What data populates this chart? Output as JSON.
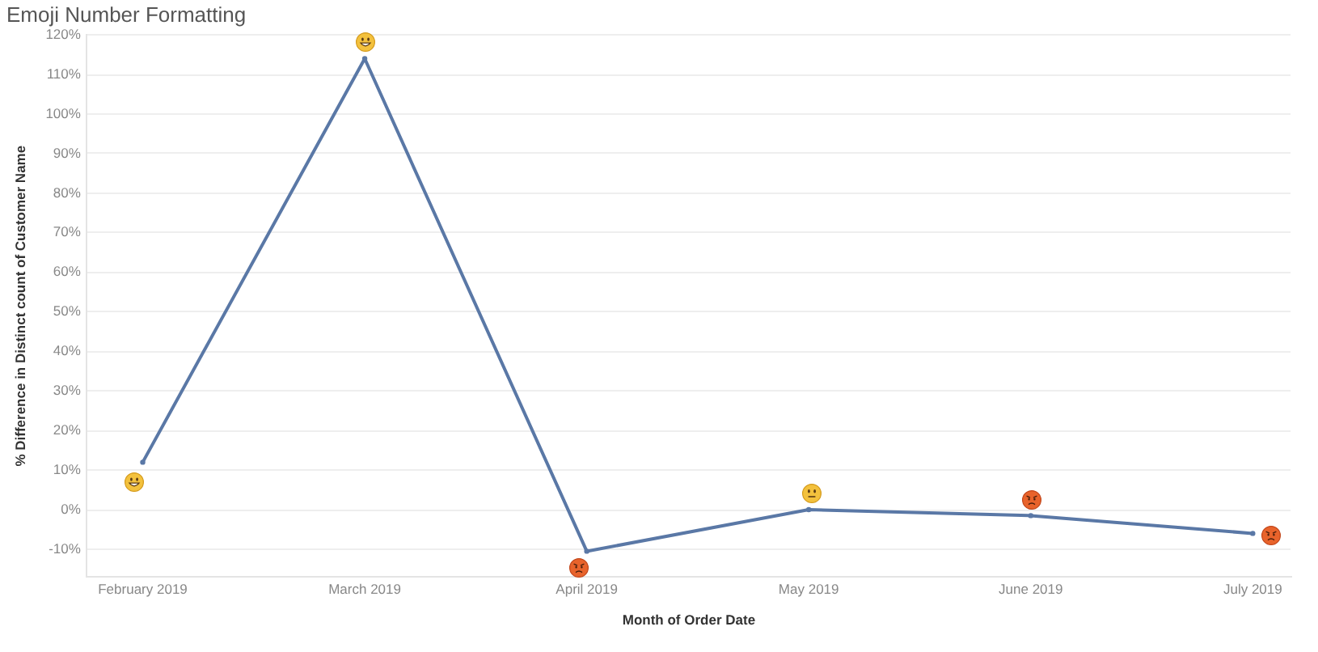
{
  "chart_data": {
    "type": "line",
    "title": "Emoji Number Formatting",
    "xlabel": "Month of Order Date",
    "ylabel": "% Difference in Distinct count of Customer Name",
    "categories": [
      "February 2019",
      "March 2019",
      "April 2019",
      "May 2019",
      "June 2019",
      "July 2019"
    ],
    "series": [
      {
        "color": "#5a78a6",
        "values": [
          12,
          114,
          -10.5,
          0,
          -1.5,
          -6
        ]
      }
    ],
    "ylim": [
      -17,
      120
    ],
    "yticks": [
      {
        "value": -10,
        "label": "-10%"
      },
      {
        "value": 0,
        "label": "0%"
      },
      {
        "value": 10,
        "label": "10%"
      },
      {
        "value": 20,
        "label": "20%"
      },
      {
        "value": 30,
        "label": "30%"
      },
      {
        "value": 40,
        "label": "40%"
      },
      {
        "value": 50,
        "label": "50%"
      },
      {
        "value": 60,
        "label": "60%"
      },
      {
        "value": 70,
        "label": "70%"
      },
      {
        "value": 80,
        "label": "80%"
      },
      {
        "value": 90,
        "label": "90%"
      },
      {
        "value": 100,
        "label": "100%"
      },
      {
        "value": 110,
        "label": "110%"
      },
      {
        "value": 120,
        "label": "120%"
      }
    ],
    "grid": "y",
    "marker": "circle",
    "line_style": "solid"
  }
}
